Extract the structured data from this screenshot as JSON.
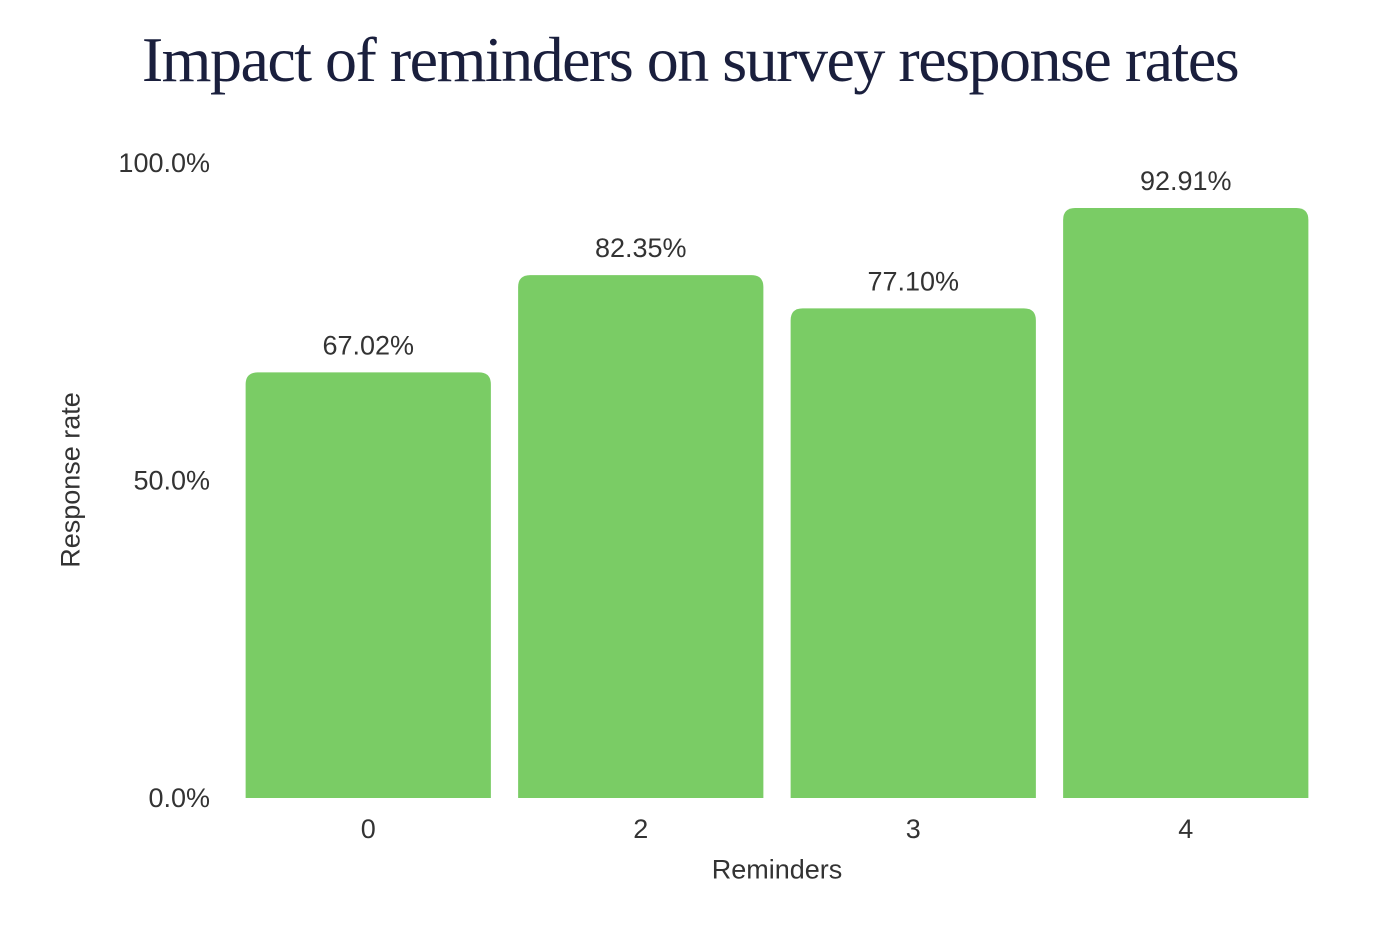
{
  "title": "Impact of reminders on survey response rates",
  "chart_data": {
    "type": "bar",
    "title": "Impact of reminders on survey response rates",
    "xlabel": "Reminders",
    "ylabel": "Response rate",
    "categories": [
      "0",
      "2",
      "3",
      "4"
    ],
    "values": [
      67.02,
      82.35,
      77.1,
      92.91
    ],
    "data_labels": [
      "67.02%",
      "82.35%",
      "77.10%",
      "92.91%"
    ],
    "ylim": [
      0,
      100
    ],
    "yticks": [
      0,
      50,
      100
    ],
    "ytick_labels": [
      "0.0%",
      "50.0%",
      "100.0%"
    ],
    "grid": false,
    "legend": "none",
    "bar_color": "#7acc65"
  }
}
